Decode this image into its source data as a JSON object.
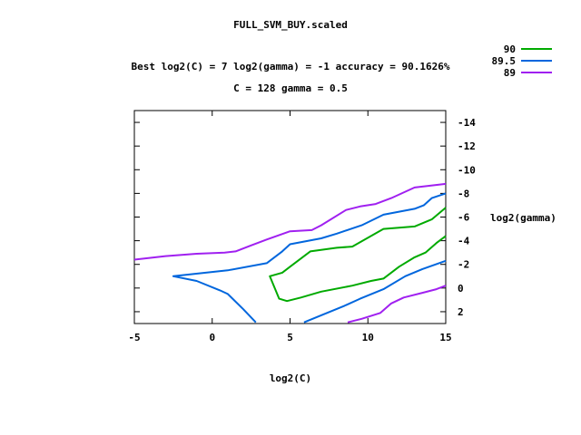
{
  "chart_data": {
    "type": "line",
    "subtype": "contour",
    "title": "FULL_SVM_BUY.scaled",
    "subtitle_lines": [
      "Best log2(C) = 7  log2(gamma) = -1  accuracy = 90.1626%",
      "C = 128  gamma = 0.5"
    ],
    "xlabel": "log2(C)",
    "ylabel": "log2(gamma)",
    "xlim": [
      -5,
      15
    ],
    "ylim": [
      3,
      -15
    ],
    "x_ticks": [
      -5,
      0,
      5,
      10,
      15
    ],
    "x_tick_labels": [
      "-5",
      "0",
      "5",
      "10",
      "15"
    ],
    "y_ticks": [
      -14,
      -12,
      -10,
      -8,
      -6,
      -4,
      -2,
      0,
      2
    ],
    "y_tick_labels": [
      "-14",
      "-12",
      "-10",
      "-8",
      "-6",
      "-4",
      "-2",
      "0",
      "2"
    ],
    "y_axis_side": "right",
    "y_reversed": true,
    "grid": false,
    "legend_placement": "top-right",
    "series": [
      {
        "name": "90",
        "color": "#00aa00",
        "segments": [
          [
            [
              15,
              -6.8
            ],
            [
              14.1,
              -5.8
            ],
            [
              13.0,
              -5.2
            ],
            [
              11.0,
              -5.0
            ],
            [
              9.0,
              -3.5
            ],
            [
              8.0,
              -3.4
            ],
            [
              6.3,
              -3.1
            ],
            [
              5.0,
              -1.8
            ],
            [
              4.5,
              -1.3
            ],
            [
              3.7,
              -1.0
            ],
            [
              4.3,
              0.9
            ],
            [
              4.8,
              1.1
            ],
            [
              5.7,
              0.8
            ],
            [
              7.0,
              0.3
            ],
            [
              9.0,
              -0.2
            ],
            [
              10.2,
              -0.6
            ],
            [
              11.0,
              -0.8
            ],
            [
              12.0,
              -1.8
            ],
            [
              13.0,
              -2.6
            ],
            [
              13.7,
              -3.0
            ],
            [
              14.4,
              -3.8
            ],
            [
              15,
              -4.4
            ]
          ]
        ]
      },
      {
        "name": "89.5",
        "color": "#0066dd",
        "segments": [
          [
            [
              15,
              -8.0
            ],
            [
              14.1,
              -7.6
            ],
            [
              13.6,
              -7.0
            ],
            [
              13.0,
              -6.7
            ],
            [
              11.0,
              -6.2
            ],
            [
              9.6,
              -5.3
            ],
            [
              8.0,
              -4.6
            ],
            [
              7.0,
              -4.2
            ],
            [
              5.0,
              -3.7
            ],
            [
              4.5,
              -3.1
            ],
            [
              3.5,
              -2.1
            ],
            [
              1.0,
              -1.5
            ],
            [
              -2.5,
              -1.0
            ],
            [
              -1.0,
              -0.6
            ],
            [
              0.5,
              0.2
            ],
            [
              1.0,
              0.5
            ],
            [
              2.0,
              1.8
            ],
            [
              2.8,
              2.9
            ]
          ],
          [
            [
              5.9,
              2.9
            ],
            [
              7.0,
              2.3
            ],
            [
              8.5,
              1.5
            ],
            [
              9.5,
              0.9
            ],
            [
              11.0,
              0.1
            ],
            [
              12.4,
              -1.0
            ],
            [
              13.5,
              -1.6
            ],
            [
              15,
              -2.3
            ]
          ]
        ]
      },
      {
        "name": "89",
        "color": "#a020f0",
        "segments": [
          [
            [
              -5,
              -2.4
            ],
            [
              -3.0,
              -2.7
            ],
            [
              -1.0,
              -2.9
            ],
            [
              0.8,
              -3.0
            ],
            [
              1.5,
              -3.1
            ],
            [
              2.5,
              -3.6
            ],
            [
              3.5,
              -4.1
            ],
            [
              5.0,
              -4.8
            ],
            [
              6.4,
              -4.9
            ],
            [
              7.0,
              -5.3
            ],
            [
              8.6,
              -6.6
            ],
            [
              9.5,
              -6.9
            ],
            [
              10.5,
              -7.1
            ],
            [
              11.5,
              -7.6
            ],
            [
              13.0,
              -8.5
            ],
            [
              15,
              -8.8
            ]
          ],
          [
            [
              8.7,
              2.9
            ],
            [
              9.6,
              2.6
            ],
            [
              10.8,
              2.1
            ],
            [
              11.5,
              1.3
            ],
            [
              12.3,
              0.8
            ],
            [
              13.5,
              0.4
            ],
            [
              14.4,
              0.1
            ],
            [
              15,
              -0.2
            ]
          ]
        ]
      }
    ]
  }
}
